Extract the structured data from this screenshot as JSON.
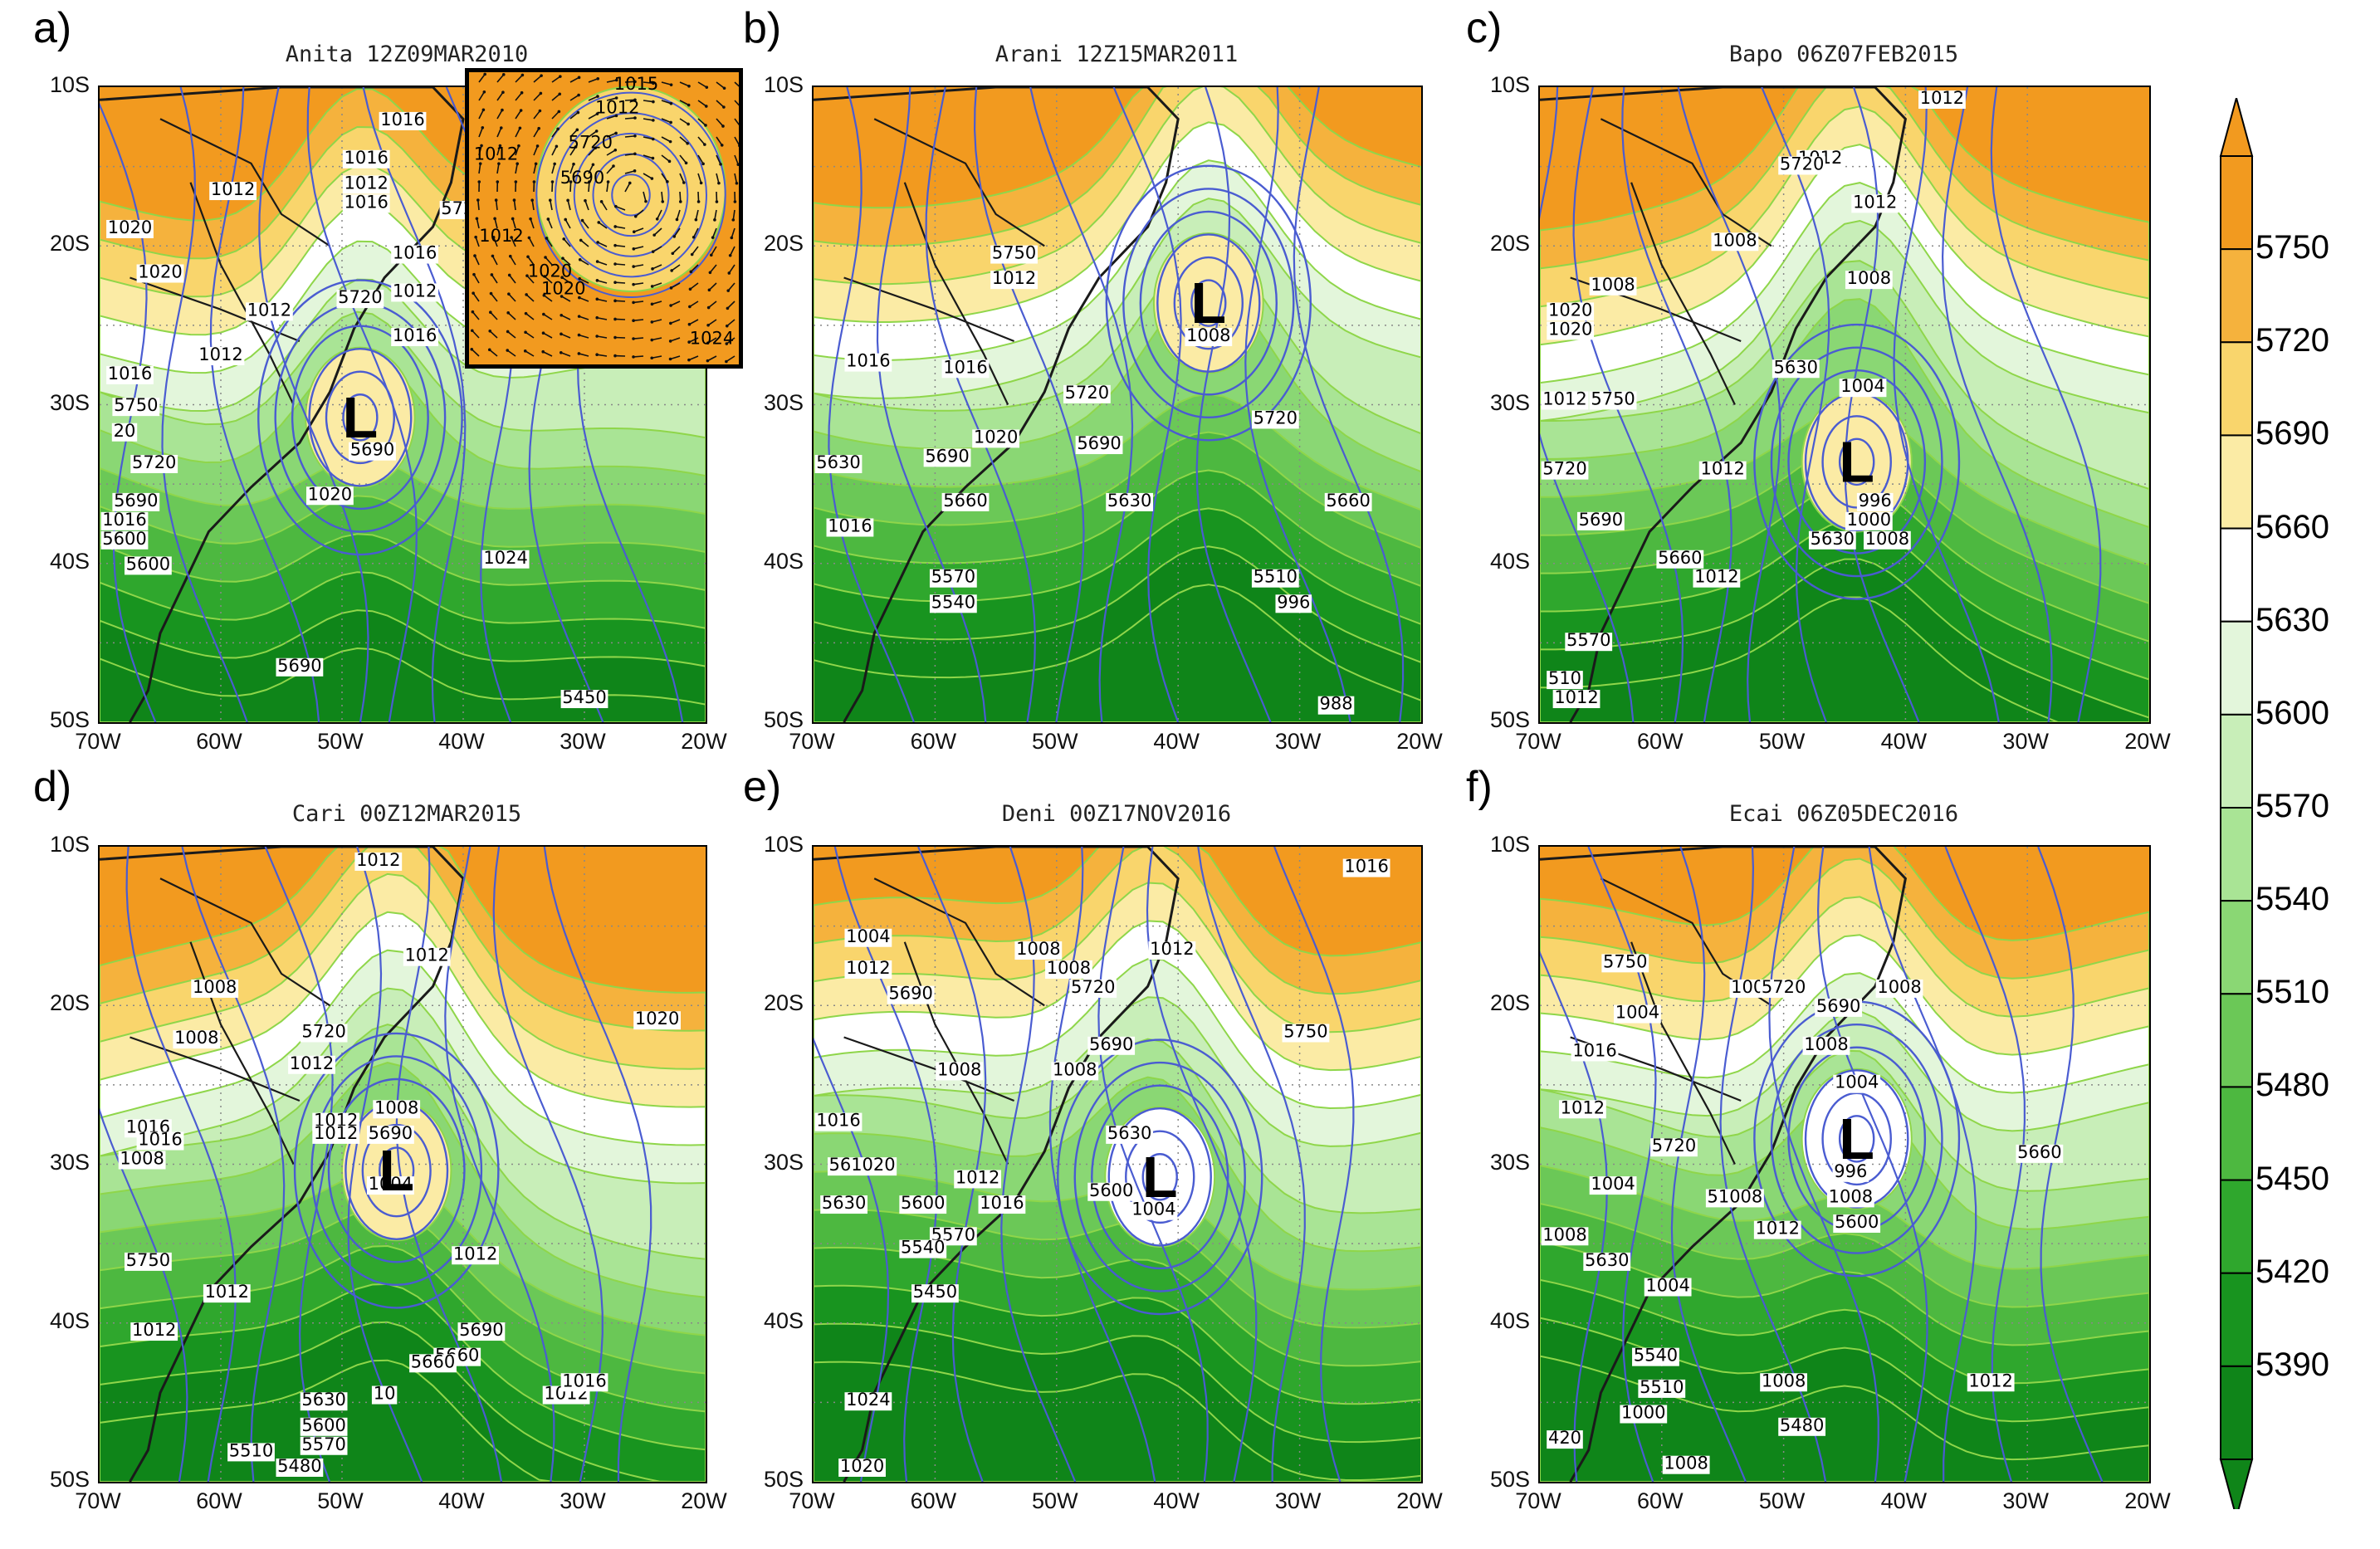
{
  "panels": [
    {
      "letter": "a)",
      "title": "Anita 12Z09MAR2010",
      "has_inset": true,
      "low_label": "L",
      "contour_labels": [
        "1016",
        "1016",
        "1012",
        "1016",
        "1016",
        "5720",
        "1012",
        "1020",
        "1012",
        "1012",
        "1016",
        "5750",
        "20",
        "5720",
        "5690",
        "5600",
        "1016",
        "5690",
        "1020",
        "1024",
        "5690",
        "5450",
        "5600",
        "1016",
        "1012",
        "5720",
        "5690",
        "1020"
      ],
      "inset_labels": [
        "1015",
        "1012",
        "5720",
        "1012",
        "5690",
        "1020",
        "1012",
        "1020",
        "1024"
      ]
    },
    {
      "letter": "b)",
      "title": "Arani 12Z15MAR2011",
      "has_inset": false,
      "low_label": "L",
      "contour_labels": [
        "5750",
        "1012",
        "1008",
        "1016",
        "1016",
        "5720",
        "5720",
        "5630",
        "5690",
        "1020",
        "5690",
        "5660",
        "5630",
        "5660",
        "1016",
        "5570",
        "5540",
        "5510",
        "996",
        "988"
      ]
    },
    {
      "letter": "c)",
      "title": "Bapo 06Z07FEB2015",
      "has_inset": false,
      "low_label": "L",
      "contour_labels": [
        "1012",
        "1012",
        "5720",
        "1012",
        "1008",
        "1008",
        "1008",
        "1020",
        "1020",
        "1012",
        "5750",
        "5630",
        "1004",
        "5720",
        "1012",
        "996",
        "1000",
        "1008",
        "5690",
        "5660",
        "1012",
        "5630",
        "5570",
        "510",
        "1012"
      ]
    },
    {
      "letter": "d)",
      "title": "Cari 00Z12MAR2015",
      "has_inset": false,
      "low_label": "L",
      "contour_labels": [
        "1012",
        "1012",
        "1008",
        "1008",
        "5720",
        "1012",
        "1020",
        "1016",
        "1012",
        "1008",
        "5690",
        "1012",
        "1004",
        "1008",
        "1016",
        "1012",
        "5750",
        "1012",
        "5690",
        "5660",
        "1012",
        "5660",
        "5630",
        "5600",
        "5570",
        "5510",
        "10",
        "1012",
        "5480",
        "1016"
      ]
    },
    {
      "letter": "e)",
      "title": "Deni 00Z17NOV2016",
      "has_inset": false,
      "low_label": "L",
      "contour_labels": [
        "1016",
        "1004",
        "1008",
        "1008",
        "1012",
        "1012",
        "5720",
        "5690",
        "1008",
        "1008",
        "5690",
        "5630",
        "5750",
        "1016",
        "561020",
        "1012",
        "5600",
        "1004",
        "5630",
        "5600",
        "1016",
        "5570",
        "5540",
        "5450",
        "1024",
        "1020"
      ]
    },
    {
      "letter": "f)",
      "title": "Ecai 06Z05DEC2016",
      "has_inset": false,
      "low_label": "L",
      "contour_labels": [
        "5750",
        "1008",
        "5720",
        "1008",
        "1004",
        "5690",
        "1016",
        "1008",
        "1004",
        "1012",
        "5720",
        "1004",
        "51008",
        "1012",
        "996",
        "1008",
        "5600",
        "5660",
        "1008",
        "5630",
        "1004",
        "5540",
        "5510",
        "1000",
        "1008",
        "1012",
        "5480",
        "1008",
        "420"
      ]
    }
  ],
  "axes": {
    "lat_ticks": [
      "10S",
      "20S",
      "30S",
      "40S",
      "50S"
    ],
    "lon_ticks": [
      "70W",
      "60W",
      "50W",
      "40W",
      "30W",
      "20W"
    ]
  },
  "colorbar": {
    "labels": [
      "5750",
      "5720",
      "5690",
      "5660",
      "5630",
      "5600",
      "5570",
      "5540",
      "5510",
      "5480",
      "5450",
      "5420",
      "5390"
    ],
    "colors": [
      "#f29a1f",
      "#f5b23d",
      "#f9d56c",
      "#fbeba5",
      "#ffffff",
      "#e3f6db",
      "#c8eeb8",
      "#a9e495",
      "#8ad774",
      "#6bc857",
      "#4db840",
      "#2fa72d",
      "#18941f",
      "#0f8519"
    ]
  },
  "colors": {
    "isobar": "#4a5cd1",
    "thickness_contour": "#8fd64a",
    "coast": "#1a1a1a"
  }
}
